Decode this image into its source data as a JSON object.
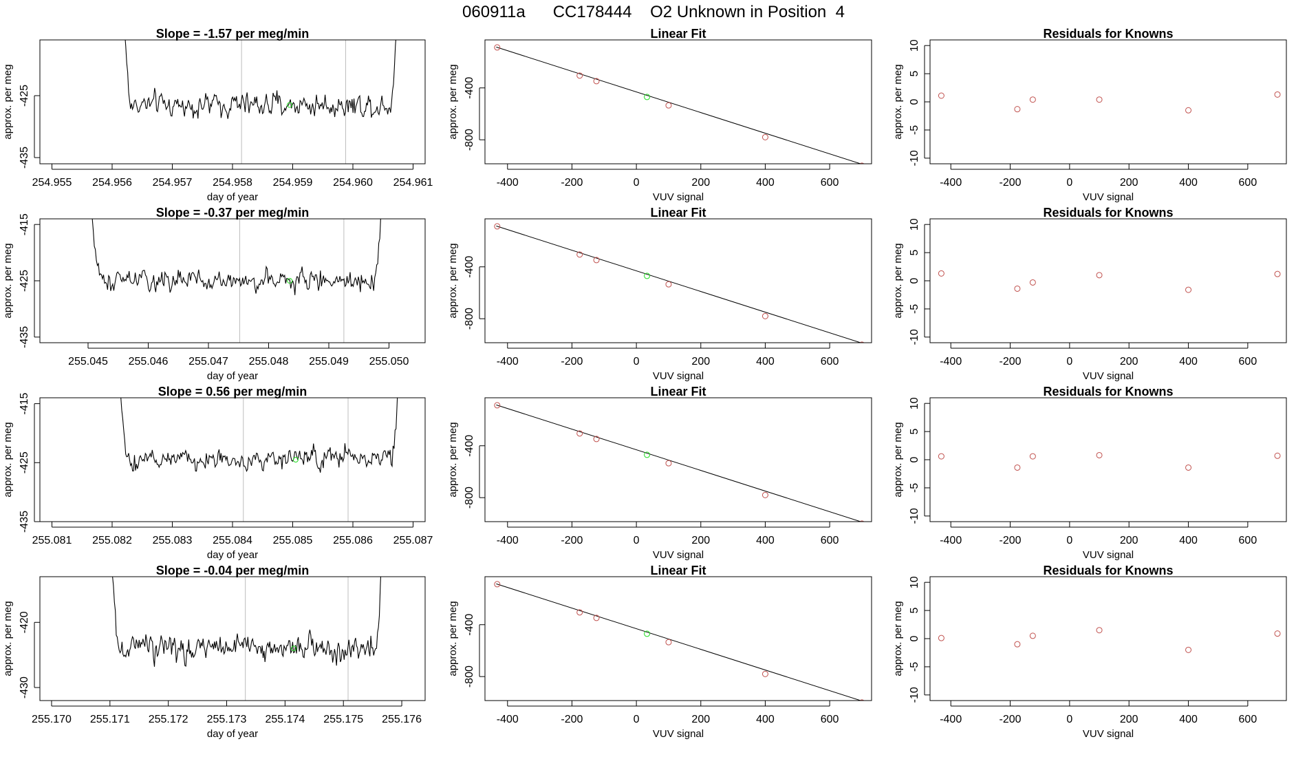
{
  "page": {
    "title": "060911a      CC178444    O2 Unknown in Position  4",
    "colors": {
      "known_point": "#c0504d",
      "unknown_point": "#22dd22",
      "guide_line": "#bebebe",
      "trace": "#000000"
    }
  },
  "chart_data": [
    {
      "type": "line",
      "row": 0,
      "col": 0,
      "title": "Slope =  -1.57  per meg/min",
      "xlabel": "day of year",
      "ylabel": "approx. per meg",
      "xlim": [
        254.9548,
        254.9612
      ],
      "ylim": [
        -436,
        -416
      ],
      "xticks": [
        "254.955",
        "254.956",
        "254.957",
        "254.958",
        "254.959",
        "254.960",
        "254.961"
      ],
      "yticks": [
        "-425",
        "-435"
      ],
      "trace_x_range": [
        254.95605,
        254.96085
      ],
      "vlines": [
        254.95815,
        254.95988
      ],
      "unknown_point": {
        "x": 254.95895,
        "y": -426.5
      },
      "grid": false,
      "legend": "none"
    },
    {
      "type": "scatter",
      "row": 0,
      "col": 1,
      "title": "Linear Fit",
      "xlabel": "VUV signal",
      "ylabel": "approx. per meg",
      "xlim": [
        -470,
        730
      ],
      "ylim": [
        -985,
        -30
      ],
      "xticks": [
        "-400",
        "-200",
        "0",
        "200",
        "400",
        "600"
      ],
      "yticks": [
        "-400",
        "-800"
      ],
      "fit_line": {
        "x": [
          -435,
          715
        ],
        "y": [
          -85,
          -1000
        ]
      },
      "known_points": {
        "x": [
          -432,
          -176,
          -124,
          100,
          400,
          700
        ],
        "y": [
          -88,
          -305,
          -348,
          -535,
          -780,
          -1000
        ]
      },
      "unknown_point": {
        "x": 33,
        "y": -470
      },
      "grid": false,
      "legend": "none"
    },
    {
      "type": "scatter",
      "row": 0,
      "col": 2,
      "title": "Residuals for Knowns",
      "xlabel": "VUV signal",
      "ylabel": "approx. per meg",
      "xlim": [
        -470,
        730
      ],
      "ylim": [
        -11,
        11
      ],
      "xticks": [
        "-400",
        "-200",
        "0",
        "200",
        "400",
        "600"
      ],
      "yticks": [
        "-10",
        "-5",
        "0",
        "5",
        "10"
      ],
      "points": {
        "x": [
          -432,
          -176,
          -124,
          100,
          400,
          700
        ],
        "y": [
          1.1,
          -1.3,
          0.4,
          0.4,
          -1.5,
          1.3
        ]
      },
      "grid": false,
      "legend": "none"
    },
    {
      "type": "line",
      "row": 1,
      "col": 0,
      "title": "Slope =  -0.37  per meg/min",
      "xlabel": "day of year",
      "ylabel": "approx. per meg",
      "xlim": [
        255.0442,
        255.0506
      ],
      "ylim": [
        -436,
        -414
      ],
      "xticks": [
        "255.045",
        "255.046",
        "255.047",
        "255.048",
        "255.049",
        "255.050"
      ],
      "yticks": [
        "-415",
        "-425",
        "-435"
      ],
      "trace_x_range": [
        255.0449,
        255.05
      ],
      "vlines": [
        255.04752,
        255.04925
      ],
      "unknown_point": {
        "x": 255.04835,
        "y": -425
      },
      "grid": false,
      "legend": "none"
    },
    {
      "type": "scatter",
      "row": 1,
      "col": 1,
      "title": "Linear Fit",
      "xlabel": "VUV signal",
      "ylabel": "approx. per meg",
      "xlim": [
        -470,
        730
      ],
      "ylim": [
        -985,
        -30
      ],
      "xticks": [
        "-400",
        "-200",
        "0",
        "200",
        "400",
        "600"
      ],
      "yticks": [
        "-400",
        "-800"
      ],
      "fit_line": {
        "x": [
          -435,
          715
        ],
        "y": [
          -85,
          -1000
        ]
      },
      "known_points": {
        "x": [
          -432,
          -176,
          -124,
          100,
          400,
          700
        ],
        "y": [
          -88,
          -305,
          -348,
          -535,
          -780,
          -1000
        ]
      },
      "unknown_point": {
        "x": 33,
        "y": -470
      },
      "grid": false,
      "legend": "none"
    },
    {
      "type": "scatter",
      "row": 1,
      "col": 2,
      "title": "Residuals for Knowns",
      "xlabel": "VUV signal",
      "ylabel": "approx. per meg",
      "xlim": [
        -470,
        730
      ],
      "ylim": [
        -11,
        11
      ],
      "xticks": [
        "-400",
        "-200",
        "0",
        "200",
        "400",
        "600"
      ],
      "yticks": [
        "-10",
        "-5",
        "0",
        "5",
        "10"
      ],
      "points": {
        "x": [
          -432,
          -176,
          -124,
          100,
          400,
          700
        ],
        "y": [
          1.3,
          -1.4,
          -0.3,
          1.0,
          -1.6,
          1.2
        ]
      },
      "grid": false,
      "legend": "none"
    },
    {
      "type": "line",
      "row": 2,
      "col": 0,
      "title": "Slope =  0.56  per meg/min",
      "xlabel": "day of year",
      "ylabel": "approx. per meg",
      "xlim": [
        255.0808,
        255.0872
      ],
      "ylim": [
        -435,
        -414
      ],
      "xticks": [
        "255.081",
        "255.082",
        "255.083",
        "255.084",
        "255.085",
        "255.086",
        "255.087"
      ],
      "yticks": [
        "-415",
        "-425",
        "-435"
      ],
      "trace_x_range": [
        255.08198,
        255.08688
      ],
      "vlines": [
        255.08418,
        255.08592
      ],
      "unknown_point": {
        "x": 255.08505,
        "y": -424.5
      },
      "grid": false,
      "legend": "none"
    },
    {
      "type": "scatter",
      "row": 2,
      "col": 1,
      "title": "Linear Fit",
      "xlabel": "VUV signal",
      "ylabel": "approx. per meg",
      "xlim": [
        -470,
        730
      ],
      "ylim": [
        -985,
        -30
      ],
      "xticks": [
        "-400",
        "-200",
        "0",
        "200",
        "400",
        "600"
      ],
      "yticks": [
        "-400",
        "-800"
      ],
      "fit_line": {
        "x": [
          -435,
          715
        ],
        "y": [
          -85,
          -1000
        ]
      },
      "known_points": {
        "x": [
          -432,
          -176,
          -124,
          100,
          400,
          700
        ],
        "y": [
          -88,
          -305,
          -348,
          -535,
          -780,
          -1000
        ]
      },
      "unknown_point": {
        "x": 33,
        "y": -470
      },
      "grid": false,
      "legend": "none"
    },
    {
      "type": "scatter",
      "row": 2,
      "col": 2,
      "title": "Residuals for Knowns",
      "xlabel": "VUV signal",
      "ylabel": "approx. per meg",
      "xlim": [
        -470,
        730
      ],
      "ylim": [
        -11,
        11
      ],
      "xticks": [
        "-400",
        "-200",
        "0",
        "200",
        "400",
        "600"
      ],
      "yticks": [
        "-10",
        "-5",
        "0",
        "5",
        "10"
      ],
      "points": {
        "x": [
          -432,
          -176,
          -124,
          100,
          400,
          700
        ],
        "y": [
          0.6,
          -1.4,
          0.6,
          0.8,
          -1.4,
          0.7
        ]
      },
      "grid": false,
      "legend": "none"
    },
    {
      "type": "line",
      "row": 3,
      "col": 0,
      "title": "Slope =  -0.04  per meg/min",
      "xlabel": "day of year",
      "ylabel": "approx. per meg",
      "xlim": [
        255.1698,
        255.1764
      ],
      "ylim": [
        -432,
        -413
      ],
      "xticks": [
        "255.170",
        "255.171",
        "255.172",
        "255.173",
        "255.174",
        "255.175",
        "255.176"
      ],
      "yticks": [
        "-420",
        "-430"
      ],
      "trace_x_range": [
        255.17088,
        255.17578
      ],
      "vlines": [
        255.17332,
        255.17508
      ],
      "unknown_point": {
        "x": 255.17415,
        "y": -424
      },
      "grid": false,
      "legend": "none"
    },
    {
      "type": "scatter",
      "row": 3,
      "col": 1,
      "title": "Linear Fit",
      "xlabel": "VUV signal",
      "ylabel": "approx. per meg",
      "xlim": [
        -470,
        730
      ],
      "ylim": [
        -985,
        -30
      ],
      "xticks": [
        "-400",
        "-200",
        "0",
        "200",
        "400",
        "600"
      ],
      "yticks": [
        "-400",
        "-800"
      ],
      "fit_line": {
        "x": [
          -435,
          715
        ],
        "y": [
          -85,
          -1000
        ]
      },
      "known_points": {
        "x": [
          -432,
          -176,
          -124,
          100,
          400,
          700
        ],
        "y": [
          -88,
          -305,
          -348,
          -535,
          -780,
          -1000
        ]
      },
      "unknown_point": {
        "x": 33,
        "y": -470
      },
      "grid": false,
      "legend": "none"
    },
    {
      "type": "scatter",
      "row": 3,
      "col": 2,
      "title": "Residuals for Knowns",
      "xlabel": "VUV signal",
      "ylabel": "approx. per meg",
      "xlim": [
        -470,
        730
      ],
      "ylim": [
        -11,
        11
      ],
      "xticks": [
        "-400",
        "-200",
        "0",
        "200",
        "400",
        "600"
      ],
      "yticks": [
        "-10",
        "-5",
        "0",
        "5",
        "10"
      ],
      "points": {
        "x": [
          -432,
          -176,
          -124,
          100,
          400,
          700
        ],
        "y": [
          0.1,
          -1.0,
          0.5,
          1.5,
          -2.0,
          0.9
        ]
      },
      "grid": false,
      "legend": "none"
    }
  ]
}
